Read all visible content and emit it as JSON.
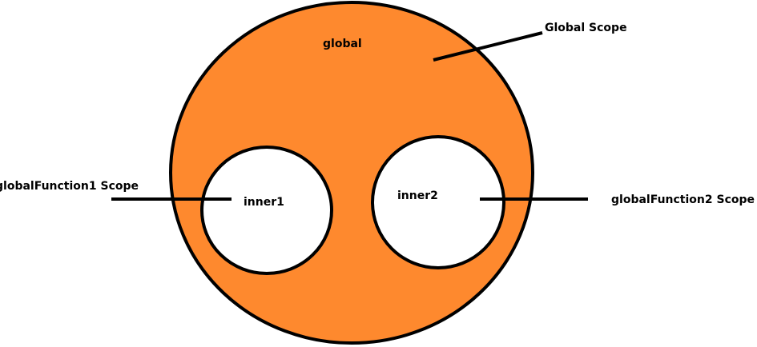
{
  "colors": {
    "background": "#ffffff",
    "global_fill": "#fe892e",
    "inner_fill": "#ffffff",
    "stroke": "#000000"
  },
  "labels": {
    "global": "global",
    "inner1": "inner1",
    "inner2": "inner2",
    "global_scope": "Global Scope",
    "function1_scope": "globalFunction1 Scope",
    "function2_scope": "globalFunction2 Scope"
  }
}
